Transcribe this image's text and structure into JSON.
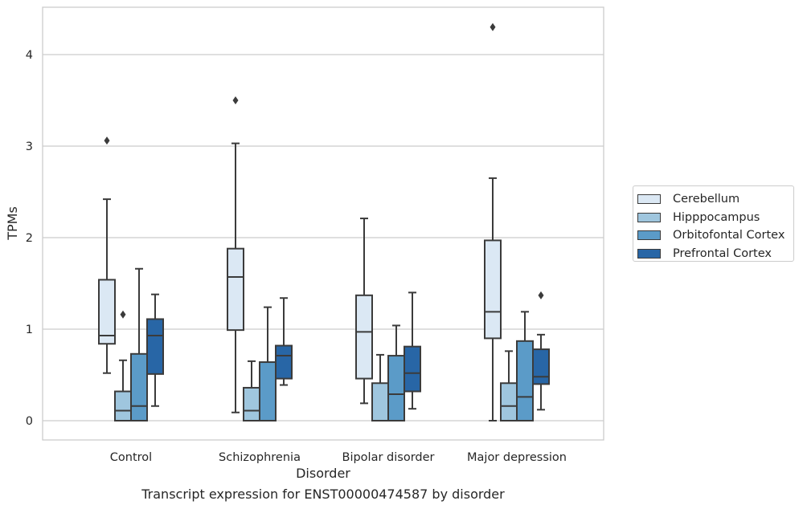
{
  "caption": "Transcript expression for ENST00000474587 by disorder",
  "chart_data": {
    "type": "box",
    "title": "",
    "xlabel": "Disorder",
    "ylabel": "TPMs",
    "ylim": [
      -0.2,
      4.52
    ],
    "yticks": [
      0,
      1,
      2,
      3,
      4
    ],
    "grid": true,
    "legend_position": "right",
    "categories": [
      "Control",
      "Schizophrenia",
      "Bipolar disorder",
      "Major depression"
    ],
    "series": [
      {
        "name": "Cerebellum",
        "color": "#dbe8f4",
        "boxes": [
          {
            "whislo": 0.52,
            "q1": 0.84,
            "med": 0.93,
            "q3": 1.54,
            "whishi": 2.42,
            "fliers": [
              3.06
            ]
          },
          {
            "whislo": 0.09,
            "q1": 0.99,
            "med": 1.57,
            "q3": 1.88,
            "whishi": 3.03,
            "fliers": [
              3.5
            ]
          },
          {
            "whislo": 0.19,
            "q1": 0.46,
            "med": 0.97,
            "q3": 1.37,
            "whishi": 2.21,
            "fliers": []
          },
          {
            "whislo": 0.0,
            "q1": 0.9,
            "med": 1.19,
            "q3": 1.97,
            "whishi": 2.65,
            "fliers": [
              4.3
            ]
          }
        ]
      },
      {
        "name": "Hipppocampus",
        "color": "#9fc6de",
        "boxes": [
          {
            "whislo": 0.0,
            "q1": 0.0,
            "med": 0.11,
            "q3": 0.32,
            "whishi": 0.66,
            "fliers": [
              1.16
            ]
          },
          {
            "whislo": 0.0,
            "q1": 0.0,
            "med": 0.11,
            "q3": 0.36,
            "whishi": 0.65,
            "fliers": []
          },
          {
            "whislo": 0.0,
            "q1": 0.0,
            "med": 0.0,
            "q3": 0.41,
            "whishi": 0.72,
            "fliers": []
          },
          {
            "whislo": 0.0,
            "q1": 0.0,
            "med": 0.16,
            "q3": 0.41,
            "whishi": 0.76,
            "fliers": []
          }
        ]
      },
      {
        "name": "Orbitofontal Cortex",
        "color": "#5b9bc8",
        "boxes": [
          {
            "whislo": 0.0,
            "q1": 0.0,
            "med": 0.16,
            "q3": 0.73,
            "whishi": 1.66,
            "fliers": []
          },
          {
            "whislo": 0.0,
            "q1": 0.0,
            "med": 0.0,
            "q3": 0.64,
            "whishi": 1.24,
            "fliers": []
          },
          {
            "whislo": 0.0,
            "q1": 0.0,
            "med": 0.29,
            "q3": 0.71,
            "whishi": 1.04,
            "fliers": []
          },
          {
            "whislo": 0.0,
            "q1": 0.0,
            "med": 0.26,
            "q3": 0.87,
            "whishi": 1.19,
            "fliers": []
          }
        ]
      },
      {
        "name": "Prefrontal Cortex",
        "color": "#2866a6",
        "boxes": [
          {
            "whislo": 0.16,
            "q1": 0.51,
            "med": 0.93,
            "q3": 1.11,
            "whishi": 1.38,
            "fliers": []
          },
          {
            "whislo": 0.39,
            "q1": 0.46,
            "med": 0.71,
            "q3": 0.82,
            "whishi": 1.34,
            "fliers": []
          },
          {
            "whislo": 0.13,
            "q1": 0.32,
            "med": 0.52,
            "q3": 0.81,
            "whishi": 1.4,
            "fliers": []
          },
          {
            "whislo": 0.12,
            "q1": 0.4,
            "med": 0.48,
            "q3": 0.78,
            "whishi": 0.94,
            "fliers": [
              1.37
            ]
          }
        ]
      }
    ]
  }
}
